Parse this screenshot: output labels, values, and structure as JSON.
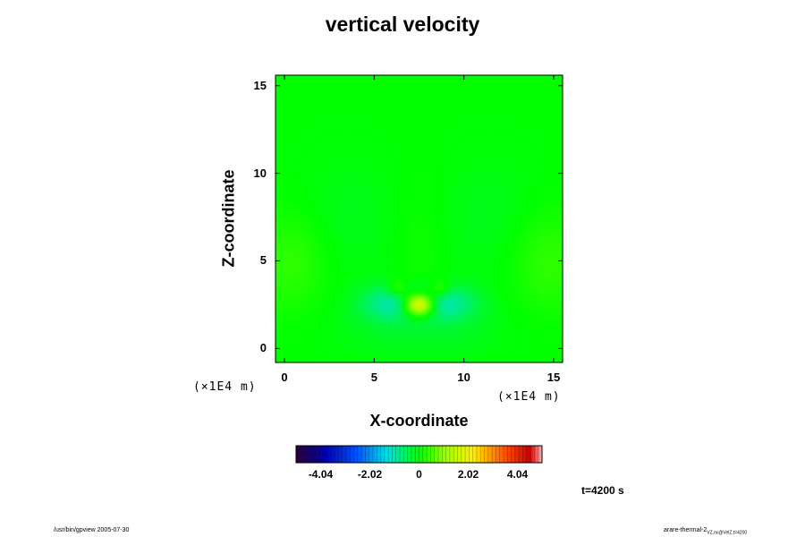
{
  "colors": {
    "background_field": "#00ff00",
    "frame": "#000000"
  },
  "footer": {
    "left": "/usr/bin/gpview 2005-07-30",
    "right_main": "arare-thermal-2",
    "right_sub": "VZ.nc@VelZ,t=4200"
  },
  "chart_data": {
    "type": "heatmap",
    "title": "vertical velocity",
    "xlabel": "X-coordinate",
    "ylabel": "Z-coordinate",
    "x_unit": "(×1E4 m)",
    "z_unit": "(×1E4 m)",
    "xlim": [
      -0.5,
      15.5
    ],
    "ylim": [
      -0.8,
      15.6
    ],
    "x_ticks": [
      0,
      5,
      10,
      15
    ],
    "y_ticks": [
      0,
      5,
      10,
      15
    ],
    "colorbar": {
      "ticks": [
        "-4.04",
        "-2.02",
        "0",
        "2.02",
        "4.04"
      ],
      "range": [
        -5.05,
        5.05
      ]
    },
    "time_label": "t=4200 s",
    "features": [
      {
        "x": 7.5,
        "z": 2.5,
        "value": 2.5,
        "sx": 0.6,
        "sz": 0.45
      },
      {
        "x": 6.0,
        "z": 2.6,
        "value": -0.9,
        "sx": 1.2,
        "sz": 0.7
      },
      {
        "x": 9.0,
        "z": 2.6,
        "value": -0.9,
        "sx": 1.2,
        "sz": 0.7
      },
      {
        "x": 6.3,
        "z": 3.4,
        "value": 0.6,
        "sx": 0.4,
        "sz": 0.35
      },
      {
        "x": 8.7,
        "z": 3.4,
        "value": 0.6,
        "sx": 0.4,
        "sz": 0.35
      },
      {
        "x": 7.5,
        "z": 1.2,
        "value": -0.25,
        "sx": 3.0,
        "sz": 1.2
      },
      {
        "x": 0.3,
        "z": 5.0,
        "value": 0.35,
        "sx": 1.5,
        "sz": 2.0
      },
      {
        "x": 14.7,
        "z": 5.0,
        "value": 0.35,
        "sx": 1.5,
        "sz": 2.0
      },
      {
        "x": 3.5,
        "z": 7.5,
        "value": -0.15,
        "sx": 2.0,
        "sz": 2.5
      },
      {
        "x": 11.5,
        "z": 7.5,
        "value": -0.15,
        "sx": 2.0,
        "sz": 2.5
      },
      {
        "x": 7.5,
        "z": 5.5,
        "value": 0.12,
        "sx": 1.0,
        "sz": 3.0
      }
    ]
  }
}
